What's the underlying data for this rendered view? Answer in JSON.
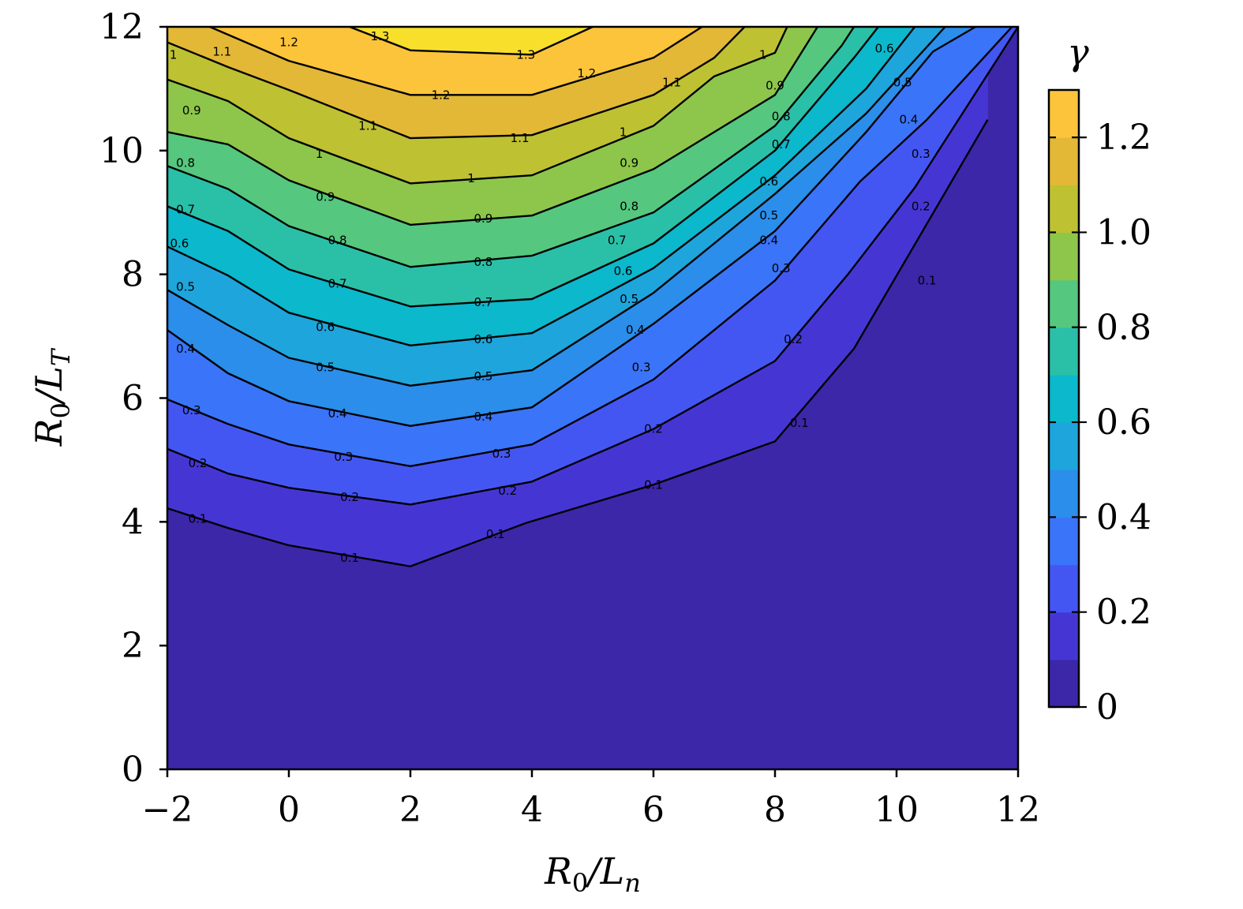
{
  "chart_data": {
    "type": "contour",
    "xlabel": {
      "main": "R",
      "sub": "0",
      "rest": "/L",
      "sub2": "n"
    },
    "ylabel": {
      "main": "R",
      "sub": "0",
      "rest": "/L",
      "sub2": "T"
    },
    "xlim": [
      -2,
      12
    ],
    "ylim": [
      0,
      12
    ],
    "xticks": [
      -2,
      0,
      2,
      4,
      6,
      8,
      10,
      12
    ],
    "xtick_labels": [
      "−2",
      "0",
      "2",
      "4",
      "6",
      "8",
      "10",
      "12"
    ],
    "yticks": [
      0,
      2,
      4,
      6,
      8,
      10,
      12
    ],
    "ytick_labels": [
      "0",
      "2",
      "4",
      "6",
      "8",
      "10",
      "12"
    ],
    "colorbar": {
      "label": "γ",
      "range": [
        0,
        1.3
      ],
      "ticks": [
        0,
        0.2,
        0.4,
        0.6,
        0.8,
        1.0,
        1.2
      ],
      "tick_labels": [
        "0",
        "0.2",
        "0.4",
        "0.6",
        "0.8",
        "1.0",
        "1.2"
      ],
      "colors": [
        "#3c27a8",
        "#4536d4",
        "#4456f2",
        "#3a74f8",
        "#2a8eea",
        "#1ea5dc",
        "#0bb8cc",
        "#2ac0a8",
        "#55c77e",
        "#8dc64a",
        "#bec132",
        "#e3b836",
        "#fbc43a",
        "#f7df2c",
        "#f9f914"
      ]
    },
    "levels": [
      0.1,
      0.2,
      0.3,
      0.4,
      0.5,
      0.6,
      0.7,
      0.8,
      0.9,
      1.0,
      1.1,
      1.2,
      1.3
    ],
    "contours": [
      {
        "level": 0.1,
        "label": "0.1",
        "points": [
          [
            -2,
            4.22
          ],
          [
            -1,
            3.9
          ],
          [
            0,
            3.62
          ],
          [
            2,
            3.28
          ],
          [
            3.9,
            3.98
          ],
          [
            6,
            4.6
          ],
          [
            8,
            5.3
          ],
          [
            9.3,
            6.8
          ],
          [
            11.5,
            10.5
          ]
        ]
      },
      {
        "level": 0.2,
        "label": "0.2",
        "points": [
          [
            -2,
            5.18
          ],
          [
            -1,
            4.78
          ],
          [
            0,
            4.55
          ],
          [
            2,
            4.28
          ],
          [
            4,
            4.65
          ],
          [
            6,
            5.5
          ],
          [
            8,
            6.6
          ],
          [
            9.2,
            8
          ],
          [
            10.3,
            9.4
          ],
          [
            12,
            12
          ]
        ]
      },
      {
        "level": 0.3,
        "label": "0.3",
        "points": [
          [
            -2,
            5.98
          ],
          [
            -1,
            5.58
          ],
          [
            0,
            5.25
          ],
          [
            2,
            4.9
          ],
          [
            4,
            5.25
          ],
          [
            6,
            6.3
          ],
          [
            8,
            7.9
          ],
          [
            9.4,
            9.5
          ],
          [
            10.5,
            10.5
          ],
          [
            11.9,
            12
          ]
        ]
      },
      {
        "level": 0.4,
        "label": "0.4",
        "points": [
          [
            -2,
            7.1
          ],
          [
            -1,
            6.4
          ],
          [
            0,
            5.95
          ],
          [
            2,
            5.55
          ],
          [
            4,
            5.85
          ],
          [
            6,
            7.2
          ],
          [
            8,
            8.7
          ],
          [
            9.5,
            10.3
          ],
          [
            10.6,
            11.6
          ],
          [
            11.3,
            12
          ]
        ]
      },
      {
        "level": 0.5,
        "label": "0.5",
        "points": [
          [
            -2,
            7.75
          ],
          [
            -1,
            7.18
          ],
          [
            0,
            6.65
          ],
          [
            2,
            6.2
          ],
          [
            4,
            6.45
          ],
          [
            6,
            7.7
          ],
          [
            8,
            9.3
          ],
          [
            9.5,
            10.6
          ],
          [
            10.8,
            12
          ]
        ]
      },
      {
        "level": 0.6,
        "label": "0.6",
        "points": [
          [
            -2,
            8.45
          ],
          [
            -1,
            7.98
          ],
          [
            0,
            7.38
          ],
          [
            2,
            6.85
          ],
          [
            4,
            7.05
          ],
          [
            6,
            8.1
          ],
          [
            8,
            9.6
          ],
          [
            9.5,
            11
          ],
          [
            10.3,
            12
          ]
        ]
      },
      {
        "level": 0.7,
        "label": "0.7",
        "points": [
          [
            -2,
            9.1
          ],
          [
            -1,
            8.7
          ],
          [
            0,
            8.08
          ],
          [
            2,
            7.48
          ],
          [
            4,
            7.6
          ],
          [
            6,
            8.5
          ],
          [
            8,
            10
          ],
          [
            9.3,
            11.5
          ],
          [
            9.7,
            12
          ]
        ]
      },
      {
        "level": 0.8,
        "label": "0.8",
        "points": [
          [
            -2,
            9.75
          ],
          [
            -1,
            9.38
          ],
          [
            0,
            8.78
          ],
          [
            2,
            8.12
          ],
          [
            4,
            8.3
          ],
          [
            6,
            9
          ],
          [
            8,
            10.4
          ],
          [
            9.1,
            11.7
          ],
          [
            9.3,
            12
          ]
        ]
      },
      {
        "level": 0.9,
        "label": "0.9",
        "points": [
          [
            -2,
            10.3
          ],
          [
            -1,
            10.1
          ],
          [
            0,
            9.52
          ],
          [
            2,
            8.8
          ],
          [
            4,
            8.95
          ],
          [
            6,
            9.7
          ],
          [
            8,
            10.9
          ],
          [
            8.7,
            12
          ]
        ]
      },
      {
        "level": 1.0,
        "label": "1",
        "points": [
          [
            -2,
            11.15
          ],
          [
            -1,
            10.8
          ],
          [
            0,
            10.2
          ],
          [
            2,
            9.47
          ],
          [
            4,
            9.6
          ],
          [
            6,
            10.4
          ],
          [
            7,
            11.2
          ],
          [
            8,
            11.58
          ],
          [
            8.2,
            12
          ]
        ]
      },
      {
        "level": 1.1,
        "label": "1.1",
        "points": [
          [
            -2,
            11.75
          ],
          [
            -1,
            11.35
          ],
          [
            0,
            10.98
          ],
          [
            2,
            10.2
          ],
          [
            4,
            10.25
          ],
          [
            6,
            10.9
          ],
          [
            7,
            11.5
          ],
          [
            7.5,
            12
          ]
        ]
      },
      {
        "level": 1.2,
        "label": "1.2",
        "points": [
          [
            -1.3,
            12
          ],
          [
            0,
            11.45
          ],
          [
            2,
            10.9
          ],
          [
            4,
            10.9
          ],
          [
            6,
            11.5
          ],
          [
            6.8,
            12
          ]
        ]
      },
      {
        "level": 1.3,
        "label": "1.3",
        "points": [
          [
            1,
            12
          ],
          [
            2,
            11.62
          ],
          [
            4,
            11.55
          ],
          [
            5,
            12
          ]
        ]
      }
    ],
    "contour_labels": [
      {
        "text": "0.1",
        "x": -1.5,
        "y": 4.05
      },
      {
        "text": "0.1",
        "x": 1,
        "y": 3.42
      },
      {
        "text": "0.1",
        "x": 3.4,
        "y": 3.8
      },
      {
        "text": "0.1",
        "x": 6,
        "y": 4.6
      },
      {
        "text": "0.1",
        "x": 8.4,
        "y": 5.6
      },
      {
        "text": "0.1",
        "x": 10.5,
        "y": 7.9
      },
      {
        "text": "0.2",
        "x": -1.5,
        "y": 4.95
      },
      {
        "text": "0.2",
        "x": 1,
        "y": 4.4
      },
      {
        "text": "0.2",
        "x": 3.6,
        "y": 4.5
      },
      {
        "text": "0.2",
        "x": 6,
        "y": 5.5
      },
      {
        "text": "0.2",
        "x": 8.3,
        "y": 6.95
      },
      {
        "text": "0.2",
        "x": 10.4,
        "y": 9.1
      },
      {
        "text": "0.3",
        "x": -1.6,
        "y": 5.8
      },
      {
        "text": "0.3",
        "x": 0.9,
        "y": 5.05
      },
      {
        "text": "0.3",
        "x": 3.5,
        "y": 5.1
      },
      {
        "text": "0.3",
        "x": 5.8,
        "y": 6.5
      },
      {
        "text": "0.3",
        "x": 8.1,
        "y": 8.1
      },
      {
        "text": "0.3",
        "x": 10.4,
        "y": 9.95
      },
      {
        "text": "0.4",
        "x": -1.7,
        "y": 6.8
      },
      {
        "text": "0.4",
        "x": 0.8,
        "y": 5.75
      },
      {
        "text": "0.4",
        "x": 3.2,
        "y": 5.7
      },
      {
        "text": "0.4",
        "x": 5.7,
        "y": 7.1
      },
      {
        "text": "0.4",
        "x": 7.9,
        "y": 8.55
      },
      {
        "text": "0.4",
        "x": 10.2,
        "y": 10.5
      },
      {
        "text": "0.5",
        "x": -1.7,
        "y": 7.8
      },
      {
        "text": "0.5",
        "x": 0.6,
        "y": 6.5
      },
      {
        "text": "0.5",
        "x": 3.2,
        "y": 6.35
      },
      {
        "text": "0.5",
        "x": 5.6,
        "y": 7.6
      },
      {
        "text": "0.5",
        "x": 7.9,
        "y": 8.95
      },
      {
        "text": "0.5",
        "x": 10.1,
        "y": 11.1
      },
      {
        "text": "0.6",
        "x": -1.8,
        "y": 8.5
      },
      {
        "text": "0.6",
        "x": 0.6,
        "y": 7.15
      },
      {
        "text": "0.6",
        "x": 3.2,
        "y": 6.95
      },
      {
        "text": "0.6",
        "x": 5.5,
        "y": 8.05
      },
      {
        "text": "0.6",
        "x": 7.9,
        "y": 9.5
      },
      {
        "text": "0.6",
        "x": 9.8,
        "y": 11.65
      },
      {
        "text": "0.7",
        "x": -1.7,
        "y": 9.05
      },
      {
        "text": "0.7",
        "x": 0.8,
        "y": 7.85
      },
      {
        "text": "0.7",
        "x": 3.2,
        "y": 7.55
      },
      {
        "text": "0.7",
        "x": 5.4,
        "y": 8.55
      },
      {
        "text": "0.7",
        "x": 8.1,
        "y": 10.1
      },
      {
        "text": "0.8",
        "x": -1.7,
        "y": 9.8
      },
      {
        "text": "0.8",
        "x": 0.8,
        "y": 8.55
      },
      {
        "text": "0.8",
        "x": 3.2,
        "y": 8.2
      },
      {
        "text": "0.8",
        "x": 5.6,
        "y": 9.1
      },
      {
        "text": "0.8",
        "x": 8.1,
        "y": 10.55
      },
      {
        "text": "0.9",
        "x": -1.6,
        "y": 10.65
      },
      {
        "text": "0.9",
        "x": 0.6,
        "y": 9.25
      },
      {
        "text": "0.9",
        "x": 3.2,
        "y": 8.9
      },
      {
        "text": "0.9",
        "x": 5.6,
        "y": 9.8
      },
      {
        "text": "0.9",
        "x": 8,
        "y": 11.05
      },
      {
        "text": "1",
        "x": -1.9,
        "y": 11.55
      },
      {
        "text": "1",
        "x": 0.5,
        "y": 9.95
      },
      {
        "text": "1",
        "x": 3,
        "y": 9.55
      },
      {
        "text": "1",
        "x": 5.5,
        "y": 10.3
      },
      {
        "text": "1",
        "x": 7.8,
        "y": 11.55
      },
      {
        "text": "1.1",
        "x": -1.1,
        "y": 11.6
      },
      {
        "text": "1.1",
        "x": 1.3,
        "y": 10.4
      },
      {
        "text": "1.1",
        "x": 3.8,
        "y": 10.2
      },
      {
        "text": "1.1",
        "x": 6.3,
        "y": 11.1
      },
      {
        "text": "1.2",
        "x": 0,
        "y": 11.75
      },
      {
        "text": "1.2",
        "x": 2.5,
        "y": 10.9
      },
      {
        "text": "1.2",
        "x": 4.9,
        "y": 11.25
      },
      {
        "text": "1.3",
        "x": 1.5,
        "y": 11.85
      },
      {
        "text": "1.3",
        "x": 3.9,
        "y": 11.55
      }
    ]
  }
}
